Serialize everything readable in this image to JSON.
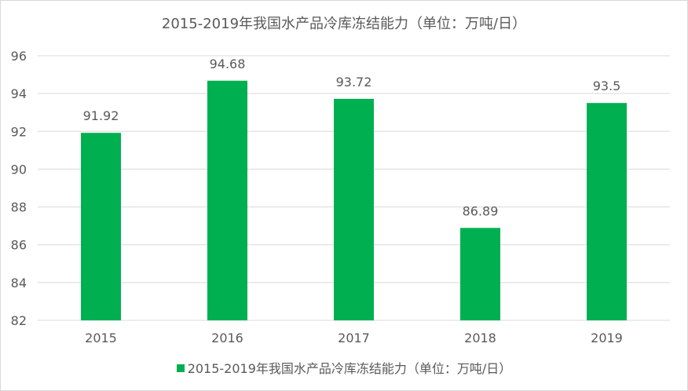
{
  "chart_data": {
    "type": "bar",
    "title": "2015-2019年我国水产品冷库冻结能力（单位：万吨/日）",
    "categories": [
      "2015",
      "2016",
      "2017",
      "2018",
      "2019"
    ],
    "series": [
      {
        "name": "2015-2019年我国水产品冷库冻结能力（单位：万吨/日）",
        "values": [
          91.92,
          94.68,
          93.72,
          86.89,
          93.5
        ],
        "value_labels": [
          "91.92",
          "94.68",
          "93.72",
          "86.89",
          "93.5"
        ],
        "color": "#00b050"
      }
    ],
    "ylim": [
      82,
      96
    ],
    "yticks": [
      82,
      84,
      86,
      88,
      90,
      92,
      94,
      96
    ],
    "grid": true,
    "legend_position": "bottom",
    "colors": {
      "bar": "#00b050",
      "grid": "#d9d9d9",
      "text": "#595959"
    }
  }
}
